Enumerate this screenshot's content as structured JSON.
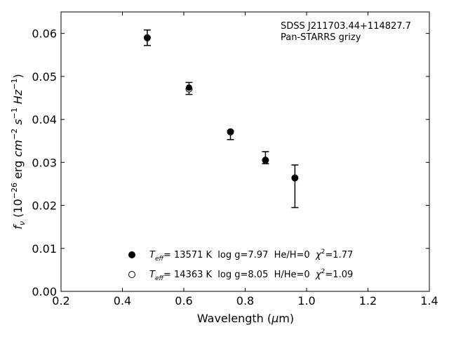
{
  "chart_data": {
    "type": "scatter",
    "xlabel_parts": [
      "Wavelength (",
      "μ",
      "m)"
    ],
    "ylabel_parts": [
      "f",
      "ν",
      " (10",
      "−26",
      " erg ",
      "cm",
      "−2",
      " ",
      "s",
      "−1",
      " ",
      "Hz",
      "−1",
      ")"
    ],
    "xlim": [
      0.2,
      1.4
    ],
    "ylim": [
      0.0,
      0.065
    ],
    "x_ticks": [
      0.2,
      0.4,
      0.6,
      0.8,
      1.0,
      1.2,
      1.4
    ],
    "x_tick_labels": [
      "0.2",
      "0.4",
      "0.6",
      "0.8",
      "1.0",
      "1.2",
      "1.4"
    ],
    "y_ticks": [
      0.0,
      0.01,
      0.02,
      0.03,
      0.04,
      0.05,
      0.06
    ],
    "y_tick_labels": [
      "0.00",
      "0.01",
      "0.02",
      "0.03",
      "0.04",
      "0.05",
      "0.06"
    ],
    "grid": false,
    "annotations": [
      "SDSS J211703.44+114827.7",
      "Pan-STARRS grizy"
    ],
    "observed": {
      "x": [
        0.481,
        0.617,
        0.752,
        0.866,
        0.962
      ],
      "y": [
        0.059,
        0.0472,
        0.037,
        0.0305,
        0.0263
      ],
      "err_low": [
        0.0018,
        0.0014,
        0.0017,
        0.0008,
        0.0068
      ],
      "err_high": [
        0.0018,
        0.0014,
        0.0004,
        0.002,
        0.0031
      ]
    },
    "series": [
      {
        "label_parts": [
          "T",
          "eff",
          "= 13571 K  log g=7.97  He/H=0  ",
          "χ",
          "2",
          "=1.77"
        ],
        "marker": "filled-circle",
        "x": [
          0.481,
          0.617,
          0.752,
          0.866,
          0.962
        ],
        "y": [
          0.0589,
          0.0474,
          0.0372,
          0.0306,
          0.0263
        ]
      },
      {
        "label_parts": [
          "T",
          "eff",
          "= 14363 K  log g=8.05  H/He=0  ",
          "χ",
          "2",
          "=1.09"
        ],
        "marker": "open-circle",
        "x": [
          0.481,
          0.617,
          0.752,
          0.866,
          0.962
        ],
        "y": [
          0.059,
          0.0471,
          0.0371,
          0.0305,
          0.0264
        ]
      }
    ]
  }
}
